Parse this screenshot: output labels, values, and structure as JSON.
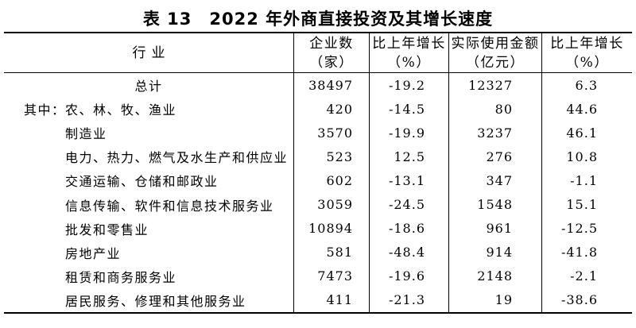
{
  "title": "表 13　2022 年外商直接投资及其增长速度",
  "table": {
    "columns": [
      {
        "line1": "行业",
        "line2": ""
      },
      {
        "line1": "企业数",
        "line2": "（家）"
      },
      {
        "line1": "比上年增长",
        "line2": "（%）"
      },
      {
        "line1": "实际使用金额",
        "line2": "（亿元）"
      },
      {
        "line1": "比上年增长",
        "line2": "（%）"
      }
    ],
    "rows": [
      {
        "prefix": "",
        "label": "总计",
        "enterprises": "38497",
        "enterprises_growth": "-19.2",
        "amount": "12327",
        "amount_growth": "6.3"
      },
      {
        "prefix": "其中：",
        "label": "农、林、牧、渔业",
        "enterprises": "420",
        "enterprises_growth": "-14.5",
        "amount": "80",
        "amount_growth": "44.6"
      },
      {
        "prefix": "",
        "label": "制造业",
        "enterprises": "3570",
        "enterprises_growth": "-19.9",
        "amount": "3237",
        "amount_growth": "46.1"
      },
      {
        "prefix": "",
        "label": "电力、热力、燃气及水生产和供应业",
        "enterprises": "523",
        "enterprises_growth": "12.5",
        "amount": "276",
        "amount_growth": "10.8"
      },
      {
        "prefix": "",
        "label": "交通运输、仓储和邮政业",
        "enterprises": "602",
        "enterprises_growth": "-13.1",
        "amount": "347",
        "amount_growth": "-1.1"
      },
      {
        "prefix": "",
        "label": "信息传输、软件和信息技术服务业",
        "enterprises": "3059",
        "enterprises_growth": "-24.5",
        "amount": "1548",
        "amount_growth": "15.1"
      },
      {
        "prefix": "",
        "label": "批发和零售业",
        "enterprises": "10894",
        "enterprises_growth": "-18.6",
        "amount": "961",
        "amount_growth": "-12.5"
      },
      {
        "prefix": "",
        "label": "房地产业",
        "enterprises": "581",
        "enterprises_growth": "-48.4",
        "amount": "914",
        "amount_growth": "-41.8"
      },
      {
        "prefix": "",
        "label": "租赁和商务服务业",
        "enterprises": "7473",
        "enterprises_growth": "-19.6",
        "amount": "2148",
        "amount_growth": "-2.1"
      },
      {
        "prefix": "",
        "label": "居民服务、修理和其他服务业",
        "enterprises": "411",
        "enterprises_growth": "-21.3",
        "amount": "19",
        "amount_growth": "-38.6"
      }
    ]
  }
}
